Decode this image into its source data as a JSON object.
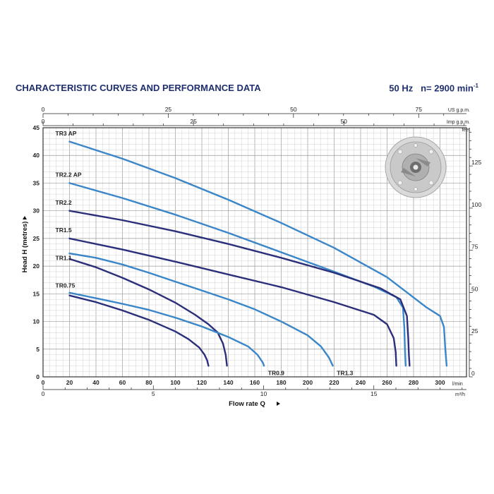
{
  "header": {
    "title": "CHARACTERISTIC CURVES AND PERFORMANCE DATA",
    "frequency": "50 Hz",
    "speed": "n= 2900 min",
    "speed_exp": "-1"
  },
  "chart_data": {
    "type": "line",
    "xlabel": "Flow rate  Q",
    "ylabel": "Head  H  (metres)",
    "x_unit": "l/min",
    "xlim": [
      0,
      320
    ],
    "ylim": [
      0,
      45
    ],
    "x_ticks": [
      0,
      20,
      40,
      60,
      80,
      100,
      120,
      140,
      160,
      180,
      200,
      220,
      240,
      260,
      280,
      300
    ],
    "y_ticks": [
      0,
      5,
      10,
      15,
      20,
      25,
      30,
      35,
      40,
      45
    ],
    "grid": true,
    "secondary_axes": {
      "m3h": {
        "unit": "m³/h",
        "ticks": [
          0,
          5,
          10,
          15
        ],
        "lpm_per_unit": 16.6667
      },
      "us_gpm": {
        "unit": "US g.p.m.",
        "ticks": [
          0,
          25,
          50,
          75
        ],
        "lpm_per_unit": 3.785
      },
      "imp_gpm": {
        "unit": "Imp g.p.m.",
        "ticks": [
          0,
          25,
          50
        ],
        "lpm_per_unit": 4.546
      },
      "feet": {
        "unit": "feet",
        "ticks": [
          0,
          25,
          50,
          75,
          100,
          125
        ],
        "m_per_unit": 0.3048
      }
    },
    "series": [
      {
        "name": "TR3 AP",
        "color": "#3a86c8",
        "label_pos": "left",
        "label_xy": [
          20,
          43.5
        ],
        "points": [
          [
            20,
            42.5
          ],
          [
            60,
            39.4
          ],
          [
            100,
            35.9
          ],
          [
            140,
            32
          ],
          [
            180,
            27.8
          ],
          [
            220,
            23.3
          ],
          [
            260,
            18
          ],
          [
            290,
            12.5
          ],
          [
            300,
            11
          ],
          [
            303,
            9
          ],
          [
            304,
            5
          ],
          [
            305,
            2
          ]
        ]
      },
      {
        "name": "TR2.2 AP",
        "color": "#3a86c8",
        "label_pos": "left",
        "label_xy": [
          20,
          36
        ],
        "points": [
          [
            20,
            35
          ],
          [
            60,
            32.3
          ],
          [
            100,
            29.3
          ],
          [
            140,
            26
          ],
          [
            180,
            22.5
          ],
          [
            220,
            19
          ],
          [
            250,
            16.3
          ],
          [
            267,
            14.4
          ],
          [
            272,
            12.5
          ],
          [
            273,
            9
          ],
          [
            273.5,
            5
          ],
          [
            274,
            2
          ]
        ]
      },
      {
        "name": "TR2.2",
        "color": "#2b2f7a",
        "label_pos": "left",
        "label_xy": [
          20,
          31
        ],
        "points": [
          [
            20,
            30
          ],
          [
            60,
            28.3
          ],
          [
            100,
            26.3
          ],
          [
            140,
            24
          ],
          [
            180,
            21.5
          ],
          [
            220,
            18.8
          ],
          [
            255,
            16
          ],
          [
            270,
            14
          ],
          [
            275,
            11
          ],
          [
            276,
            7
          ],
          [
            276.5,
            4
          ],
          [
            277,
            2
          ]
        ]
      },
      {
        "name": "TR1.5",
        "color": "#2b2f7a",
        "label_pos": "left",
        "label_xy": [
          20,
          26
        ],
        "points": [
          [
            20,
            25
          ],
          [
            60,
            23
          ],
          [
            100,
            20.8
          ],
          [
            140,
            18.5
          ],
          [
            180,
            16.2
          ],
          [
            220,
            13.5
          ],
          [
            250,
            11.2
          ],
          [
            260,
            9.5
          ],
          [
            265,
            7
          ],
          [
            266.5,
            4.5
          ],
          [
            267,
            2
          ]
        ]
      },
      {
        "name": "TR1.3",
        "color": "#3a86c8",
        "label_pos": "below",
        "label_xy": [
          222,
          1.2
        ],
        "points": [
          [
            20,
            22.3
          ],
          [
            40,
            21.5
          ],
          [
            60,
            20.3
          ],
          [
            80,
            18.8
          ],
          [
            100,
            17.2
          ],
          [
            120,
            15.6
          ],
          [
            140,
            14
          ],
          [
            160,
            12.2
          ],
          [
            180,
            10
          ],
          [
            200,
            7.5
          ],
          [
            210,
            5.5
          ],
          [
            216,
            3.5
          ],
          [
            219,
            2
          ]
        ]
      },
      {
        "name": "TR1.1",
        "color": "#2b2f7a",
        "label_pos": "left",
        "label_xy": [
          20,
          21
        ],
        "points": [
          [
            20,
            21.3
          ],
          [
            40,
            19.8
          ],
          [
            60,
            17.9
          ],
          [
            80,
            15.8
          ],
          [
            100,
            13.4
          ],
          [
            115,
            11.2
          ],
          [
            125,
            9.5
          ],
          [
            132,
            8
          ],
          [
            136,
            6
          ],
          [
            138,
            4
          ],
          [
            139,
            2
          ]
        ]
      },
      {
        "name": "TR0.9",
        "color": "#3a86c8",
        "label_pos": "below",
        "label_xy": [
          170,
          1.2
        ],
        "points": [
          [
            20,
            15.2
          ],
          [
            40,
            14.2
          ],
          [
            60,
            13.2
          ],
          [
            80,
            12.1
          ],
          [
            100,
            10.7
          ],
          [
            120,
            9.1
          ],
          [
            140,
            7.2
          ],
          [
            155,
            5.5
          ],
          [
            162,
            4
          ],
          [
            166,
            2.6
          ],
          [
            167,
            2
          ]
        ]
      },
      {
        "name": "TR0.75",
        "color": "#2b2f7a",
        "label_pos": "left",
        "label_xy": [
          20,
          16
        ],
        "points": [
          [
            20,
            14.7
          ],
          [
            40,
            13.5
          ],
          [
            60,
            12
          ],
          [
            80,
            10.3
          ],
          [
            100,
            8.2
          ],
          [
            110,
            6.8
          ],
          [
            118,
            5.3
          ],
          [
            122,
            4
          ],
          [
            124,
            3
          ],
          [
            125,
            2
          ]
        ]
      }
    ]
  }
}
